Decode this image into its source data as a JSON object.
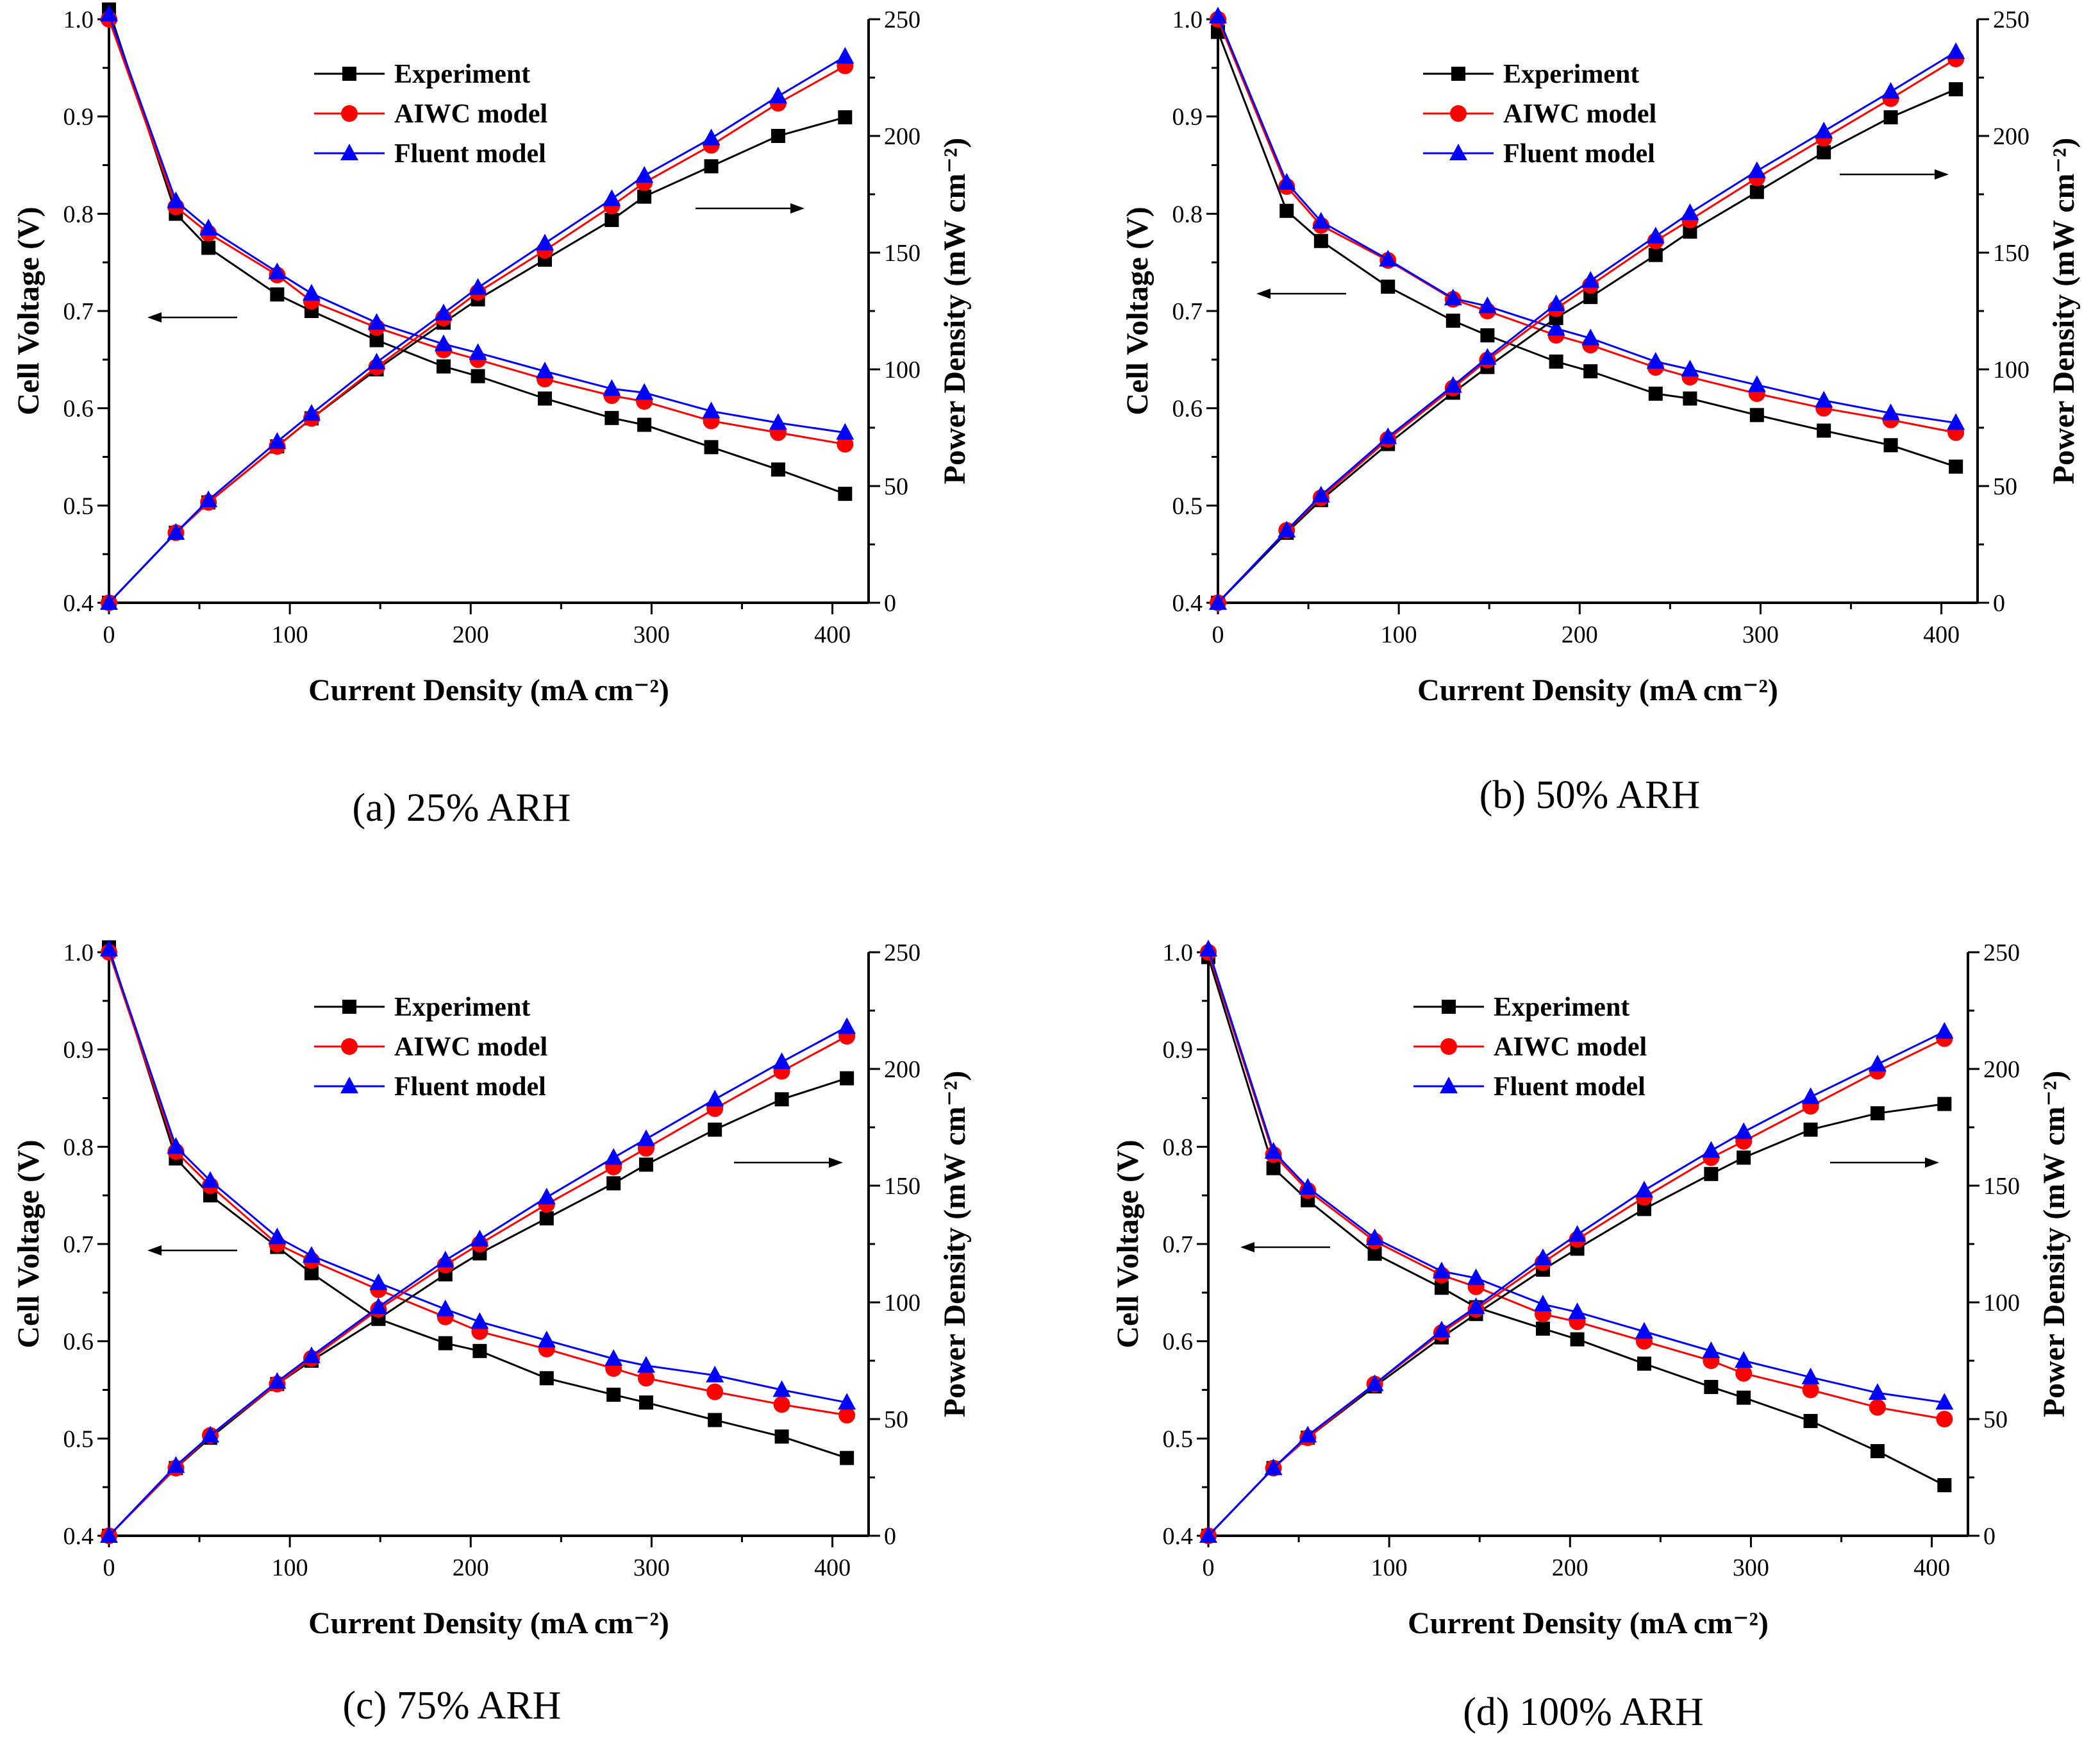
{
  "figure": {
    "common": {
      "xlabel": "Current Density (mA cm⁻²)",
      "ylabel_left": "Cell Voltage (V)",
      "ylabel_right": "Power Density (mW cm⁻²)",
      "xlim": [
        0,
        420
      ],
      "ylim_left": [
        0.4,
        1.0
      ],
      "ylim_right": [
        0,
        250
      ],
      "x_ticks": [
        "0",
        "100",
        "200",
        "300",
        "400"
      ],
      "y_left_ticks": [
        "0.4",
        "0.5",
        "0.6",
        "0.7",
        "0.8",
        "0.9",
        "1.0"
      ],
      "y_right_ticks": [
        "0",
        "50",
        "100",
        "150",
        "200",
        "250"
      ],
      "legend": [
        "Experiment",
        "AIWC model",
        "Fluent model"
      ],
      "colors": {
        "experiment": "#000000",
        "aiwc": "#ff0000",
        "fluent": "#0000ff"
      }
    }
  },
  "chart_data": [
    {
      "type": "line",
      "caption": "(a) 25% ARH",
      "x": [
        0,
        37,
        55,
        93,
        112,
        148,
        185,
        204,
        241,
        278,
        296,
        333,
        370,
        407
      ],
      "voltage": [
        {
          "name": "Experiment",
          "values": [
            1.01,
            0.8,
            0.765,
            0.717,
            0.7,
            0.67,
            0.643,
            0.633,
            0.61,
            0.59,
            0.583,
            0.56,
            0.537,
            0.512
          ]
        },
        {
          "name": "AIWC model",
          "values": [
            1.0,
            0.807,
            0.78,
            0.737,
            0.71,
            0.683,
            0.66,
            0.65,
            0.63,
            0.613,
            0.607,
            0.587,
            0.575,
            0.563
          ]
        },
        {
          "name": "Fluent model",
          "values": [
            1.005,
            0.813,
            0.785,
            0.74,
            0.718,
            0.688,
            0.666,
            0.657,
            0.638,
            0.62,
            0.616,
            0.597,
            0.585,
            0.575
          ]
        }
      ],
      "power": [
        {
          "name": "Experiment",
          "values": [
            0,
            30,
            43,
            67,
            79,
            100,
            120,
            130,
            147,
            164,
            174,
            187,
            200,
            208
          ]
        },
        {
          "name": "AIWC model",
          "values": [
            0,
            30,
            43,
            67,
            79,
            101,
            122,
            133,
            151,
            170,
            180,
            196,
            214,
            230
          ]
        },
        {
          "name": "Fluent model",
          "values": [
            0,
            30,
            44,
            69,
            81,
            103,
            124,
            135,
            154,
            173,
            183,
            199,
            217,
            234
          ]
        }
      ]
    },
    {
      "type": "line",
      "caption": "(b) 50% ARH",
      "x": [
        0,
        38,
        57,
        94,
        130,
        149,
        187,
        206,
        242,
        261,
        298,
        335,
        372,
        408
      ],
      "voltage": [
        {
          "name": "Experiment",
          "values": [
            0.987,
            0.803,
            0.772,
            0.725,
            0.69,
            0.675,
            0.648,
            0.638,
            0.615,
            0.61,
            0.593,
            0.577,
            0.562,
            0.54
          ]
        },
        {
          "name": "AIWC model",
          "values": [
            1.0,
            0.828,
            0.788,
            0.752,
            0.712,
            0.7,
            0.675,
            0.665,
            0.642,
            0.632,
            0.615,
            0.6,
            0.588,
            0.575
          ]
        },
        {
          "name": "Fluent model",
          "values": [
            1.003,
            0.832,
            0.792,
            0.753,
            0.713,
            0.705,
            0.682,
            0.672,
            0.648,
            0.64,
            0.624,
            0.608,
            0.595,
            0.585
          ]
        }
      ],
      "power": [
        {
          "name": "Experiment",
          "values": [
            0,
            30,
            44,
            68,
            90,
            101,
            122,
            131,
            149,
            159,
            176,
            193,
            208,
            220
          ]
        },
        {
          "name": "AIWC model",
          "values": [
            0,
            31,
            45,
            70,
            92,
            104,
            126,
            136,
            155,
            164,
            182,
            199,
            216,
            233
          ]
        },
        {
          "name": "Fluent model",
          "values": [
            0,
            31,
            46,
            71,
            93,
            105,
            128,
            138,
            157,
            167,
            185,
            202,
            219,
            236
          ]
        }
      ]
    },
    {
      "type": "line",
      "caption": "(c) 75% ARH",
      "x": [
        0,
        37,
        56,
        93,
        112,
        149,
        186,
        205,
        242,
        279,
        297,
        335,
        372,
        408
      ],
      "voltage": [
        {
          "name": "Experiment",
          "values": [
            1.005,
            0.788,
            0.75,
            0.697,
            0.67,
            0.623,
            0.598,
            0.59,
            0.562,
            0.545,
            0.537,
            0.519,
            0.502,
            0.48
          ]
        },
        {
          "name": "AIWC model",
          "values": [
            1.0,
            0.795,
            0.76,
            0.7,
            0.683,
            0.653,
            0.625,
            0.61,
            0.592,
            0.572,
            0.562,
            0.548,
            0.535,
            0.524
          ]
        },
        {
          "name": "Fluent model",
          "values": [
            1.003,
            0.8,
            0.765,
            0.707,
            0.688,
            0.66,
            0.633,
            0.62,
            0.601,
            0.582,
            0.575,
            0.565,
            0.55,
            0.537
          ]
        }
      ],
      "power": [
        {
          "name": "Experiment",
          "values": [
            0,
            29,
            42,
            65,
            75,
            93,
            112,
            121,
            136,
            151,
            159,
            174,
            187,
            196
          ]
        },
        {
          "name": "AIWC model",
          "values": [
            0,
            29,
            43,
            65,
            76,
            97,
            116,
            125,
            142,
            158,
            166,
            183,
            199,
            214
          ]
        },
        {
          "name": "Fluent model",
          "values": [
            0,
            30,
            43,
            66,
            77,
            98,
            118,
            127,
            145,
            162,
            170,
            187,
            203,
            218
          ]
        }
      ]
    },
    {
      "type": "line",
      "caption": "(d) 100% ARH",
      "x": [
        0,
        36,
        55,
        92,
        129,
        148,
        185,
        204,
        241,
        278,
        296,
        333,
        370,
        407
      ],
      "voltage": [
        {
          "name": "Experiment",
          "values": [
            0.995,
            0.778,
            0.745,
            0.69,
            0.655,
            0.635,
            0.613,
            0.602,
            0.577,
            0.553,
            0.542,
            0.518,
            0.487,
            0.452
          ]
        },
        {
          "name": "AIWC model",
          "values": [
            1.0,
            0.792,
            0.755,
            0.703,
            0.668,
            0.656,
            0.628,
            0.62,
            0.6,
            0.58,
            0.567,
            0.55,
            0.532,
            0.52
          ]
        },
        {
          "name": "Fluent model",
          "values": [
            1.003,
            0.795,
            0.758,
            0.706,
            0.672,
            0.665,
            0.638,
            0.63,
            0.61,
            0.59,
            0.58,
            0.563,
            0.547,
            0.537
          ]
        }
      ],
      "power": [
        {
          "name": "Experiment",
          "values": [
            0,
            29,
            42,
            64,
            85,
            95,
            114,
            123,
            140,
            155,
            162,
            174,
            181,
            185
          ]
        },
        {
          "name": "AIWC model",
          "values": [
            0,
            29,
            42,
            65,
            87,
            97,
            117,
            127,
            145,
            162,
            169,
            184,
            199,
            213
          ]
        },
        {
          "name": "Fluent model",
          "values": [
            0,
            29,
            43,
            65,
            88,
            98,
            119,
            129,
            148,
            165,
            173,
            188,
            202,
            216
          ]
        }
      ]
    }
  ]
}
